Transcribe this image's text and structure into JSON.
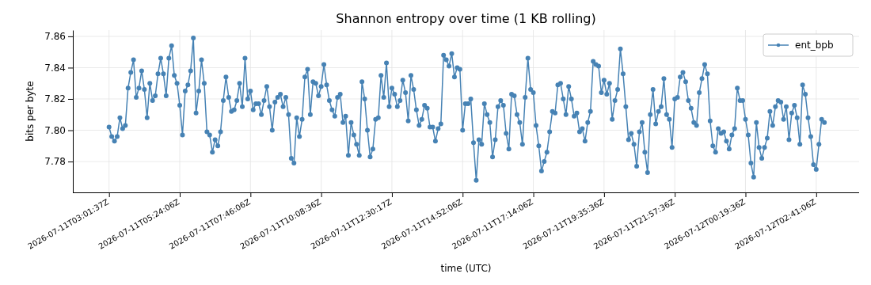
{
  "chart_data": {
    "type": "line",
    "title": "Shannon entropy over time (1 KB rolling)",
    "xlabel": "time (UTC)",
    "ylabel": "bits per byte",
    "categories": [
      "2026-07-11T03:01:37Z",
      null,
      null,
      null,
      null,
      null,
      null,
      null,
      null,
      null,
      null,
      null,
      null,
      null,
      null,
      null,
      null,
      null,
      null,
      null,
      null,
      null,
      null,
      null,
      null,
      null,
      "2026-07-11T05:24:06Z",
      null,
      null,
      null,
      null,
      null,
      null,
      null,
      null,
      null,
      null,
      null,
      null,
      null,
      null,
      null,
      null,
      null,
      null,
      null,
      null,
      null,
      null,
      null,
      null,
      null,
      "2026-07-11T07:46:06Z",
      null,
      null,
      null,
      null,
      null,
      null,
      null,
      null,
      null,
      null,
      null,
      null,
      null,
      null,
      null,
      null,
      null,
      null,
      null,
      null,
      null,
      null,
      null,
      null,
      null,
      "2026-07-11T10:08:36Z",
      null,
      null,
      null,
      null,
      null,
      null,
      null,
      null,
      null,
      null,
      null,
      null,
      null,
      null,
      null,
      null,
      null,
      null,
      null,
      null,
      null,
      null,
      null,
      null,
      null,
      "2026-07-11T12:30:17Z",
      null,
      null,
      null,
      null,
      null,
      null,
      null,
      null,
      null,
      null,
      null,
      null,
      null,
      null,
      null,
      null,
      null,
      null,
      null,
      null,
      null,
      null,
      null,
      null,
      null,
      "2026-07-11T14:52:06Z",
      null,
      null,
      null,
      null,
      null,
      null,
      null,
      null,
      null,
      null,
      null,
      null,
      null,
      null,
      null,
      null,
      null,
      null,
      null,
      null,
      null,
      null,
      null,
      null,
      null,
      "2026-07-11T17:14:06Z",
      null,
      null,
      null,
      null,
      null,
      null,
      null,
      null,
      null,
      null,
      null,
      null,
      null,
      null,
      null,
      null,
      null,
      null,
      null,
      null,
      null,
      null,
      null,
      null,
      null,
      "2026-07-11T19:35:36Z",
      null,
      null,
      null,
      null,
      null,
      null,
      null,
      null,
      null,
      null,
      null,
      null,
      null,
      null,
      null,
      null,
      null,
      null,
      null,
      null,
      null,
      null,
      null,
      null,
      null,
      "2026-07-11T21:57:36Z",
      null,
      null,
      null,
      null,
      null,
      null,
      null,
      null,
      null,
      null,
      null,
      null,
      null,
      null,
      null,
      null,
      null,
      null,
      null,
      null,
      null,
      null,
      null,
      null,
      null,
      "2026-07-12T00:19:36Z",
      null,
      null,
      null,
      null,
      null,
      null,
      null,
      null,
      null,
      null,
      null,
      null,
      null,
      null,
      null,
      null,
      null,
      null,
      null,
      null,
      null,
      null,
      null,
      null,
      null,
      "2026-07-12T02:41:06Z",
      null,
      null,
      null
    ],
    "series": [
      {
        "name": "ent_bpb",
        "color": "#4682b4",
        "values": [
          7.802,
          7.796,
          7.793,
          7.796,
          7.808,
          7.801,
          7.803,
          7.827,
          7.837,
          7.845,
          7.821,
          7.827,
          7.838,
          7.826,
          7.808,
          7.83,
          7.819,
          7.822,
          7.836,
          7.846,
          7.836,
          7.822,
          7.846,
          7.854,
          7.835,
          7.83,
          7.816,
          7.797,
          7.825,
          7.829,
          7.838,
          7.859,
          7.811,
          7.825,
          7.845,
          7.83,
          7.799,
          7.797,
          7.786,
          7.794,
          7.79,
          7.799,
          7.819,
          7.834,
          7.821,
          7.812,
          7.813,
          7.819,
          7.83,
          7.815,
          7.846,
          7.82,
          7.825,
          7.813,
          7.817,
          7.817,
          7.81,
          7.819,
          7.828,
          7.815,
          7.8,
          7.818,
          7.821,
          7.823,
          7.815,
          7.821,
          7.81,
          7.782,
          7.779,
          7.808,
          7.796,
          7.807,
          7.834,
          7.839,
          7.81,
          7.831,
          7.83,
          7.822,
          7.828,
          7.842,
          7.829,
          7.819,
          7.813,
          7.809,
          7.821,
          7.823,
          7.805,
          7.809,
          7.784,
          7.805,
          7.797,
          7.791,
          7.784,
          7.831,
          7.82,
          7.8,
          7.783,
          7.788,
          7.807,
          7.808,
          7.835,
          7.821,
          7.843,
          7.815,
          7.827,
          7.823,
          7.815,
          7.819,
          7.832,
          7.824,
          7.806,
          7.835,
          7.826,
          7.813,
          7.803,
          7.807,
          7.816,
          7.814,
          7.802,
          7.802,
          7.793,
          7.801,
          7.804,
          7.848,
          7.845,
          7.841,
          7.849,
          7.834,
          7.84,
          7.839,
          7.8,
          7.817,
          7.817,
          7.82,
          7.792,
          7.768,
          7.794,
          7.791,
          7.817,
          7.81,
          7.805,
          7.783,
          7.794,
          7.815,
          7.819,
          7.816,
          7.798,
          7.788,
          7.823,
          7.822,
          7.81,
          7.805,
          7.791,
          7.821,
          7.846,
          7.826,
          7.824,
          7.803,
          7.79,
          7.774,
          7.78,
          7.786,
          7.799,
          7.812,
          7.811,
          7.829,
          7.83,
          7.82,
          7.81,
          7.828,
          7.82,
          7.809,
          7.811,
          7.799,
          7.801,
          7.793,
          7.805,
          7.812,
          7.844,
          7.842,
          7.841,
          7.824,
          7.832,
          7.823,
          7.83,
          7.807,
          7.819,
          7.826,
          7.852,
          7.836,
          7.815,
          7.794,
          7.798,
          7.791,
          7.777,
          7.799,
          7.805,
          7.786,
          7.773,
          7.81,
          7.826,
          7.804,
          7.812,
          7.815,
          7.833,
          7.81,
          7.807,
          7.789,
          7.82,
          7.821,
          7.834,
          7.837,
          7.831,
          7.819,
          7.814,
          7.805,
          7.803,
          7.824,
          7.833,
          7.842,
          7.836,
          7.806,
          7.79,
          7.786,
          7.801,
          7.798,
          7.799,
          7.793,
          7.788,
          7.797,
          7.801,
          7.827,
          7.819,
          7.819,
          7.807,
          7.797,
          7.779,
          7.77,
          7.805,
          7.789,
          7.782,
          7.789,
          7.795,
          7.812,
          7.803,
          7.815,
          7.819,
          7.818,
          7.807,
          7.815,
          7.794,
          7.811,
          7.816,
          7.808,
          7.791,
          7.829,
          7.823,
          7.808,
          7.796,
          7.778,
          7.775,
          7.791,
          7.807,
          7.805
        ]
      }
    ],
    "ylim": [
      7.7603,
      7.864
    ],
    "yticks": [
      7.78,
      {
        "value": 7.8,
        "label": "7.80"
      },
      7.82,
      7.84,
      7.86
    ],
    "grid": true,
    "legend": "top right",
    "marker": "circle",
    "line_style": "solid"
  }
}
